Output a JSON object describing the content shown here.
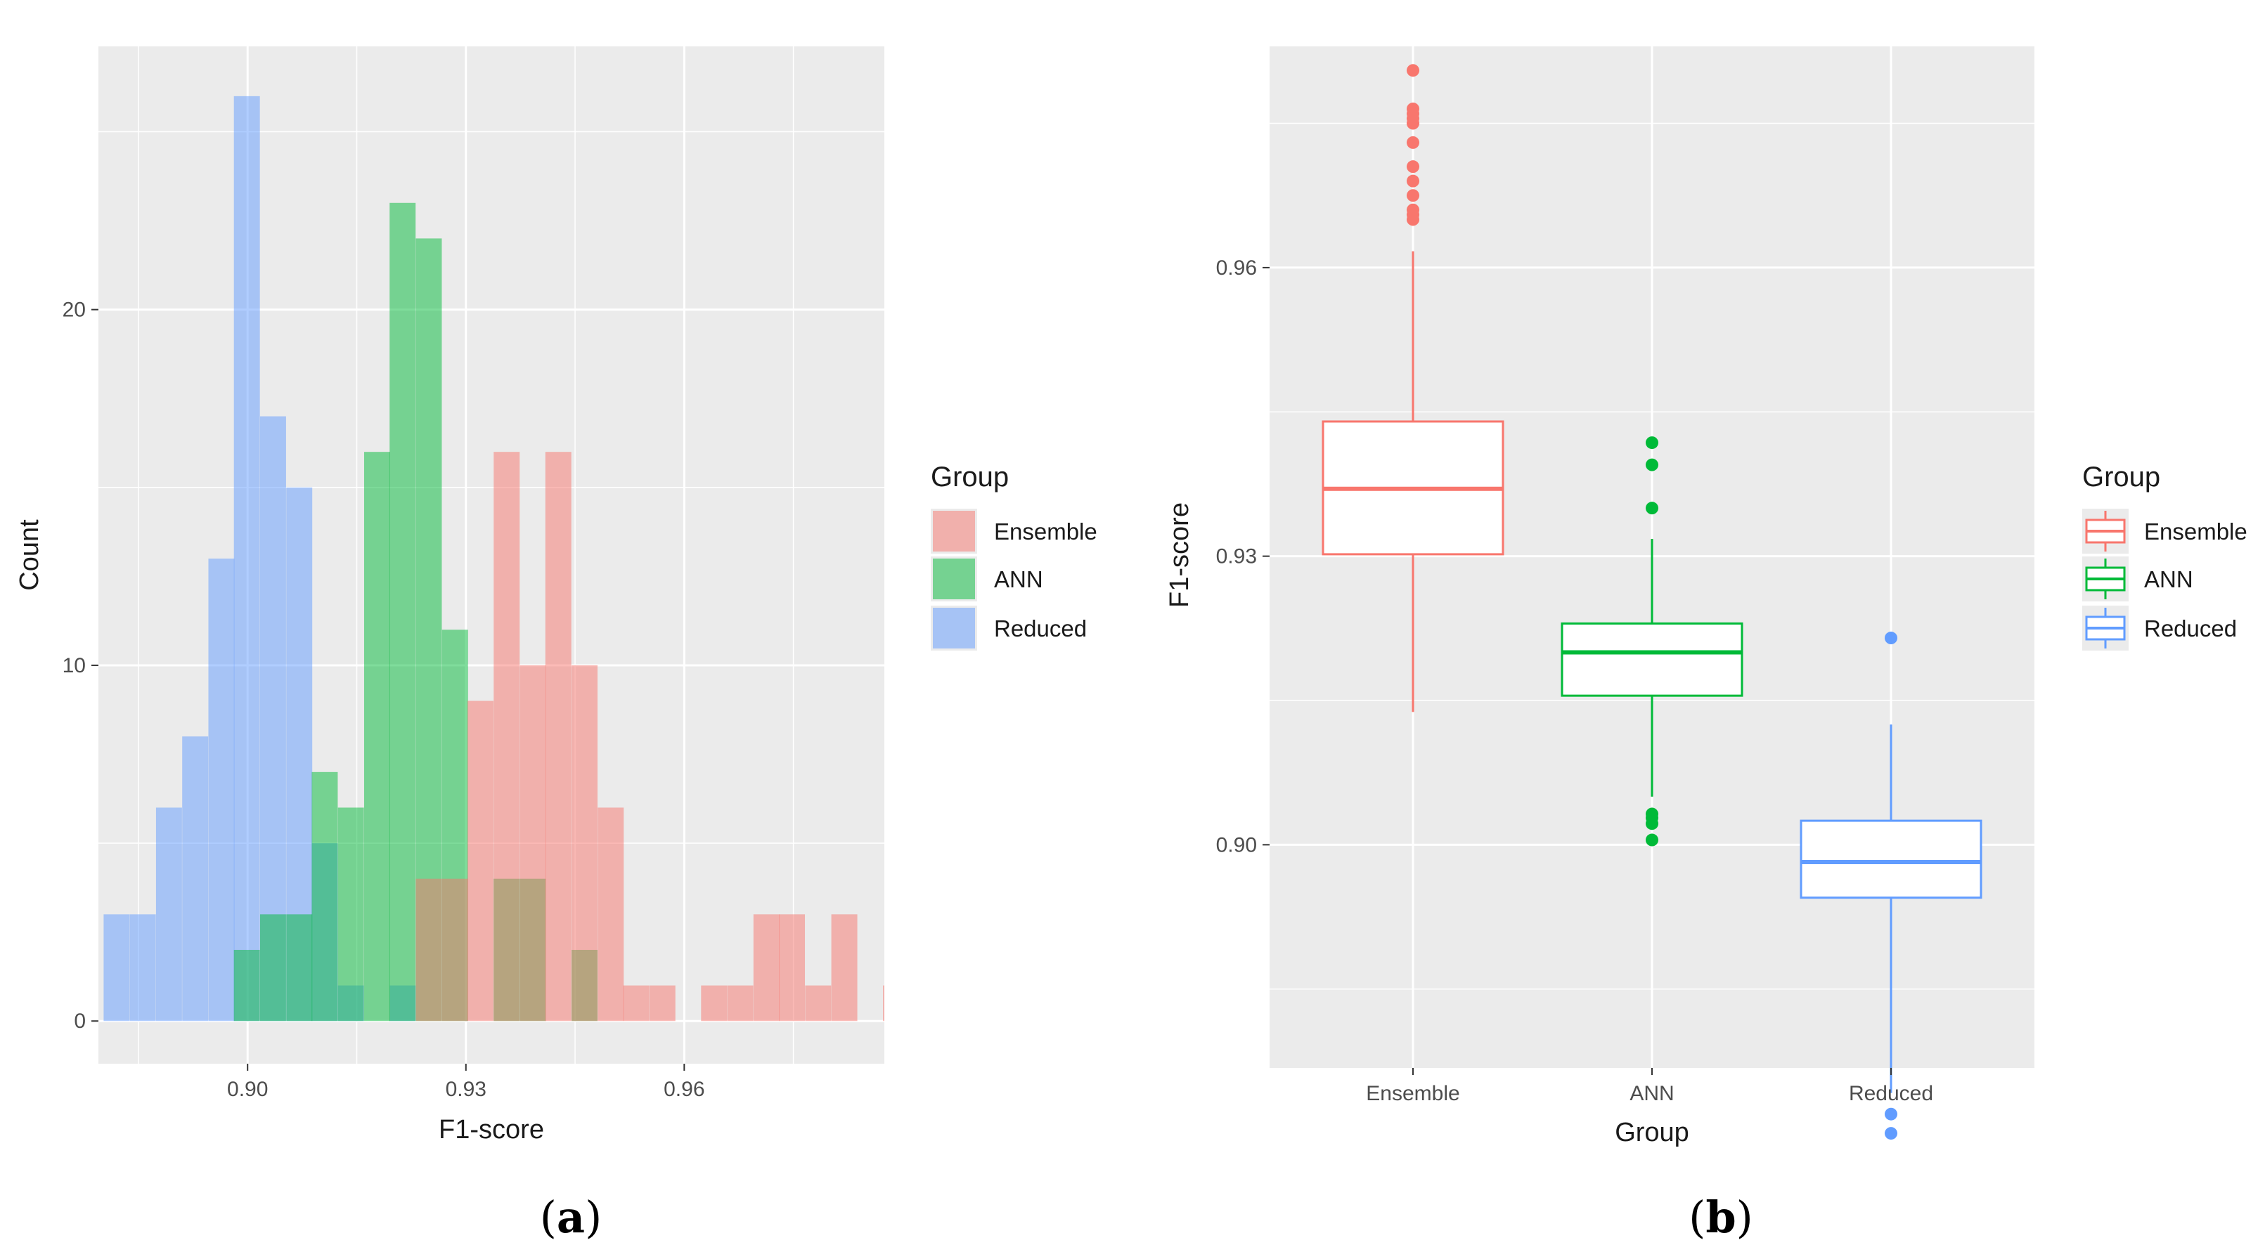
{
  "colors": {
    "ensemble": "#F8766D",
    "ann": "#00BA38",
    "reduced": "#619CFF",
    "panel_bg": "#EBEBEB",
    "grid": "#FFFFFF"
  },
  "chart_data": [
    {
      "type": "bar",
      "subtype": "histogram",
      "panel": "(a)",
      "panel_letter": "a",
      "xlabel": "F1-score",
      "ylabel": "Count",
      "xlim": [
        0.8795,
        0.9875
      ],
      "ylim": [
        -1.2,
        27.4
      ],
      "xticks": [
        0.9,
        0.93,
        0.96
      ],
      "xtick_labels": [
        "0.90",
        "0.93",
        "0.96"
      ],
      "yticks": [
        0,
        10,
        20
      ],
      "ytick_labels": [
        "0",
        "10",
        "20"
      ],
      "bin_width": 0.00357,
      "legend": {
        "title": "Group",
        "position": "right",
        "entries": [
          "Ensemble",
          "ANN",
          "Reduced"
        ]
      },
      "series": [
        {
          "name": "Reduced",
          "bins": [
            [
              0.882,
              3
            ],
            [
              0.8856,
              3
            ],
            [
              0.8892,
              6
            ],
            [
              0.8928,
              8
            ],
            [
              0.8964,
              13
            ],
            [
              0.8999,
              26
            ],
            [
              0.9035,
              17
            ],
            [
              0.9071,
              15
            ],
            [
              0.9106,
              5
            ],
            [
              0.9142,
              1
            ],
            [
              0.9213,
              1
            ]
          ]
        },
        {
          "name": "ANN",
          "bins": [
            [
              0.8999,
              2
            ],
            [
              0.9035,
              3
            ],
            [
              0.9071,
              3
            ],
            [
              0.9106,
              7
            ],
            [
              0.9142,
              6
            ],
            [
              0.9178,
              16
            ],
            [
              0.9213,
              23
            ],
            [
              0.9249,
              22
            ],
            [
              0.9285,
              11
            ],
            [
              0.9356,
              4
            ],
            [
              0.9392,
              4
            ],
            [
              0.9463,
              2
            ]
          ]
        },
        {
          "name": "Ensemble",
          "bins": [
            [
              0.9249,
              4
            ],
            [
              0.9285,
              4
            ],
            [
              0.932,
              9
            ],
            [
              0.9356,
              16
            ],
            [
              0.9392,
              10
            ],
            [
              0.9427,
              16
            ],
            [
              0.9463,
              10
            ],
            [
              0.9499,
              6
            ],
            [
              0.9534,
              1
            ],
            [
              0.957,
              1
            ],
            [
              0.9641,
              1
            ],
            [
              0.9677,
              1
            ],
            [
              0.9713,
              3
            ],
            [
              0.9748,
              3
            ],
            [
              0.9784,
              1
            ],
            [
              0.982,
              3
            ],
            [
              0.9891,
              1
            ]
          ]
        }
      ]
    },
    {
      "type": "box",
      "panel": "(b)",
      "panel_letter": "b",
      "xlabel": "Group",
      "ylabel": "F1-score",
      "ylim": [
        0.8768,
        0.983
      ],
      "yticks": [
        0.9,
        0.93,
        0.96
      ],
      "ytick_labels": [
        "0.90",
        "0.93",
        "0.96"
      ],
      "categories": [
        "Ensemble",
        "ANN",
        "Reduced"
      ],
      "legend": {
        "title": "Group",
        "position": "right",
        "entries": [
          "Ensemble",
          "ANN",
          "Reduced"
        ]
      },
      "boxes": [
        {
          "name": "Ensemble",
          "whisker_low": 0.9138,
          "q1": 0.9302,
          "median": 0.937,
          "q3": 0.944,
          "whisker_high": 0.9617,
          "outliers": [
            0.9805,
            0.9765,
            0.976,
            0.9755,
            0.975,
            0.973,
            0.9705,
            0.969,
            0.9675,
            0.966,
            0.9655,
            0.965
          ]
        },
        {
          "name": "ANN",
          "whisker_low": 0.905,
          "q1": 0.9155,
          "median": 0.92,
          "q3": 0.923,
          "whisker_high": 0.9318,
          "outliers": [
            0.9418,
            0.9395,
            0.935,
            0.9032,
            0.9028,
            0.9022,
            0.9005
          ]
        },
        {
          "name": "Reduced",
          "whisker_low": 0.8742,
          "q1": 0.8945,
          "median": 0.8982,
          "q3": 0.9025,
          "whisker_high": 0.9125,
          "outliers": [
            0.9215,
            0.872,
            0.87
          ]
        }
      ]
    }
  ]
}
